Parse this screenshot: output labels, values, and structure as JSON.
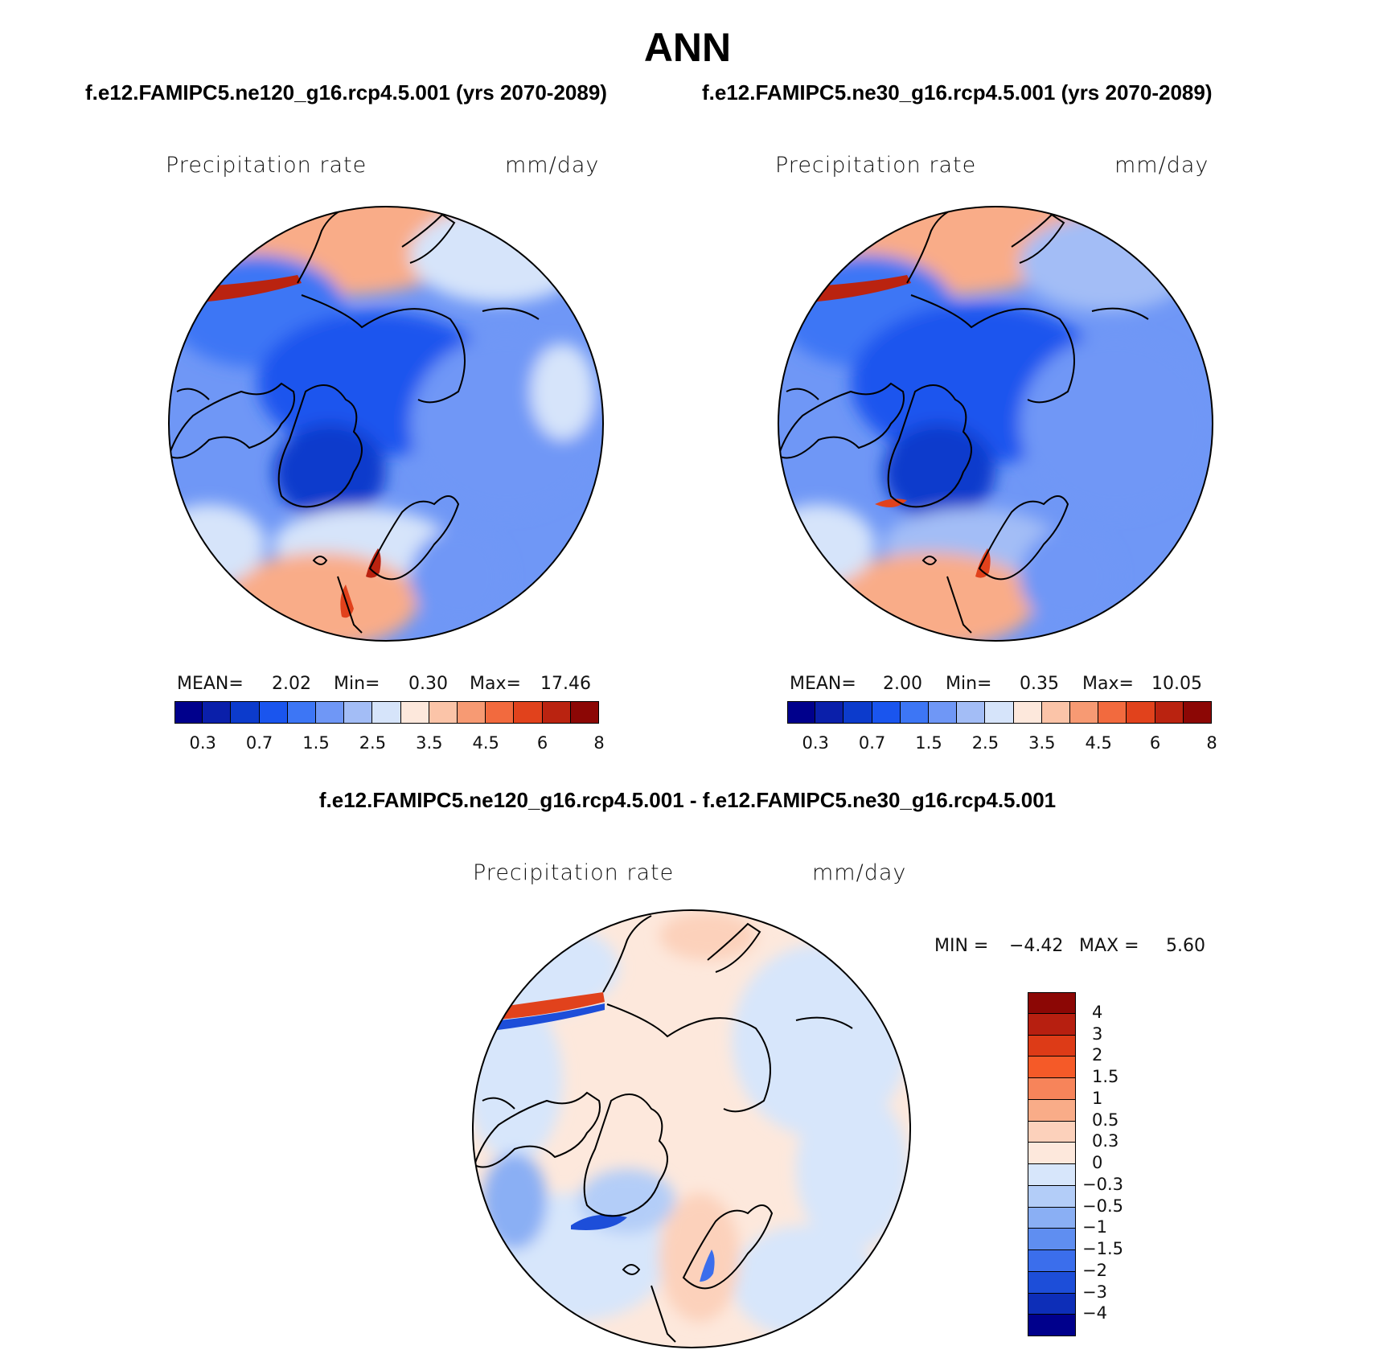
{
  "title": "ANN",
  "cases": {
    "left": "f.e12.FAMIPC5.ne120_g16.rcp4.5.001 (yrs 2070-2089)",
    "right": "f.e12.FAMIPC5.ne30_g16.rcp4.5.001 (yrs 2070-2089)"
  },
  "diff_title": "f.e12.FAMIPC5.ne120_g16.rcp4.5.001 - f.e12.FAMIPC5.ne30_g16.rcp4.5.001",
  "panels": [
    {
      "variable": "Precipitation rate",
      "units": "mm/day",
      "mean_label": "MEAN=",
      "mean": "2.02",
      "min_label": "Min=",
      "min": "0.30",
      "max_label": "Max=",
      "max": "17.46"
    },
    {
      "variable": "Precipitation rate",
      "units": "mm/day",
      "mean_label": "MEAN=",
      "mean": "2.00",
      "min_label": "Min=",
      "min": "0.35",
      "max_label": "Max=",
      "max": "10.05"
    }
  ],
  "diff_panel": {
    "variable": "Precipitation rate",
    "units": "mm/day",
    "min_label": "MIN =",
    "min": "−4.42",
    "max_label": "MAX =",
    "max": "5.60"
  },
  "colorbar": {
    "colors": [
      "#00008c",
      "#0a1faa",
      "#0c3bcc",
      "#1a55ee",
      "#3d76f5",
      "#6f97f6",
      "#a3bdf6",
      "#d6e4fa",
      "#fde8dc",
      "#fbc4a8",
      "#f79a73",
      "#f26a3e",
      "#e1421c",
      "#ba2310",
      "#8c0705"
    ],
    "labels": [
      "0.3",
      "0.7",
      "1.5",
      "2.5",
      "3.5",
      "4.5",
      "6",
      "8"
    ]
  },
  "diff_colorbar": {
    "colors": [
      "#8c0705",
      "#b71f10",
      "#dd3b17",
      "#f55a28",
      "#f7845a",
      "#f9ac88",
      "#fcd1bb",
      "#fde8dc",
      "#d7e6fb",
      "#b3cdf8",
      "#8aaff4",
      "#5f8ef1",
      "#3b6eec",
      "#1d4ed9",
      "#0d2eb8",
      "#00008c"
    ],
    "labels": [
      "4",
      "3",
      "2",
      "1.5",
      "1",
      "0.5",
      "0.3",
      "0",
      "−0.3",
      "−0.5",
      "−1",
      "−1.5",
      "−2",
      "−3",
      "−4"
    ]
  }
}
